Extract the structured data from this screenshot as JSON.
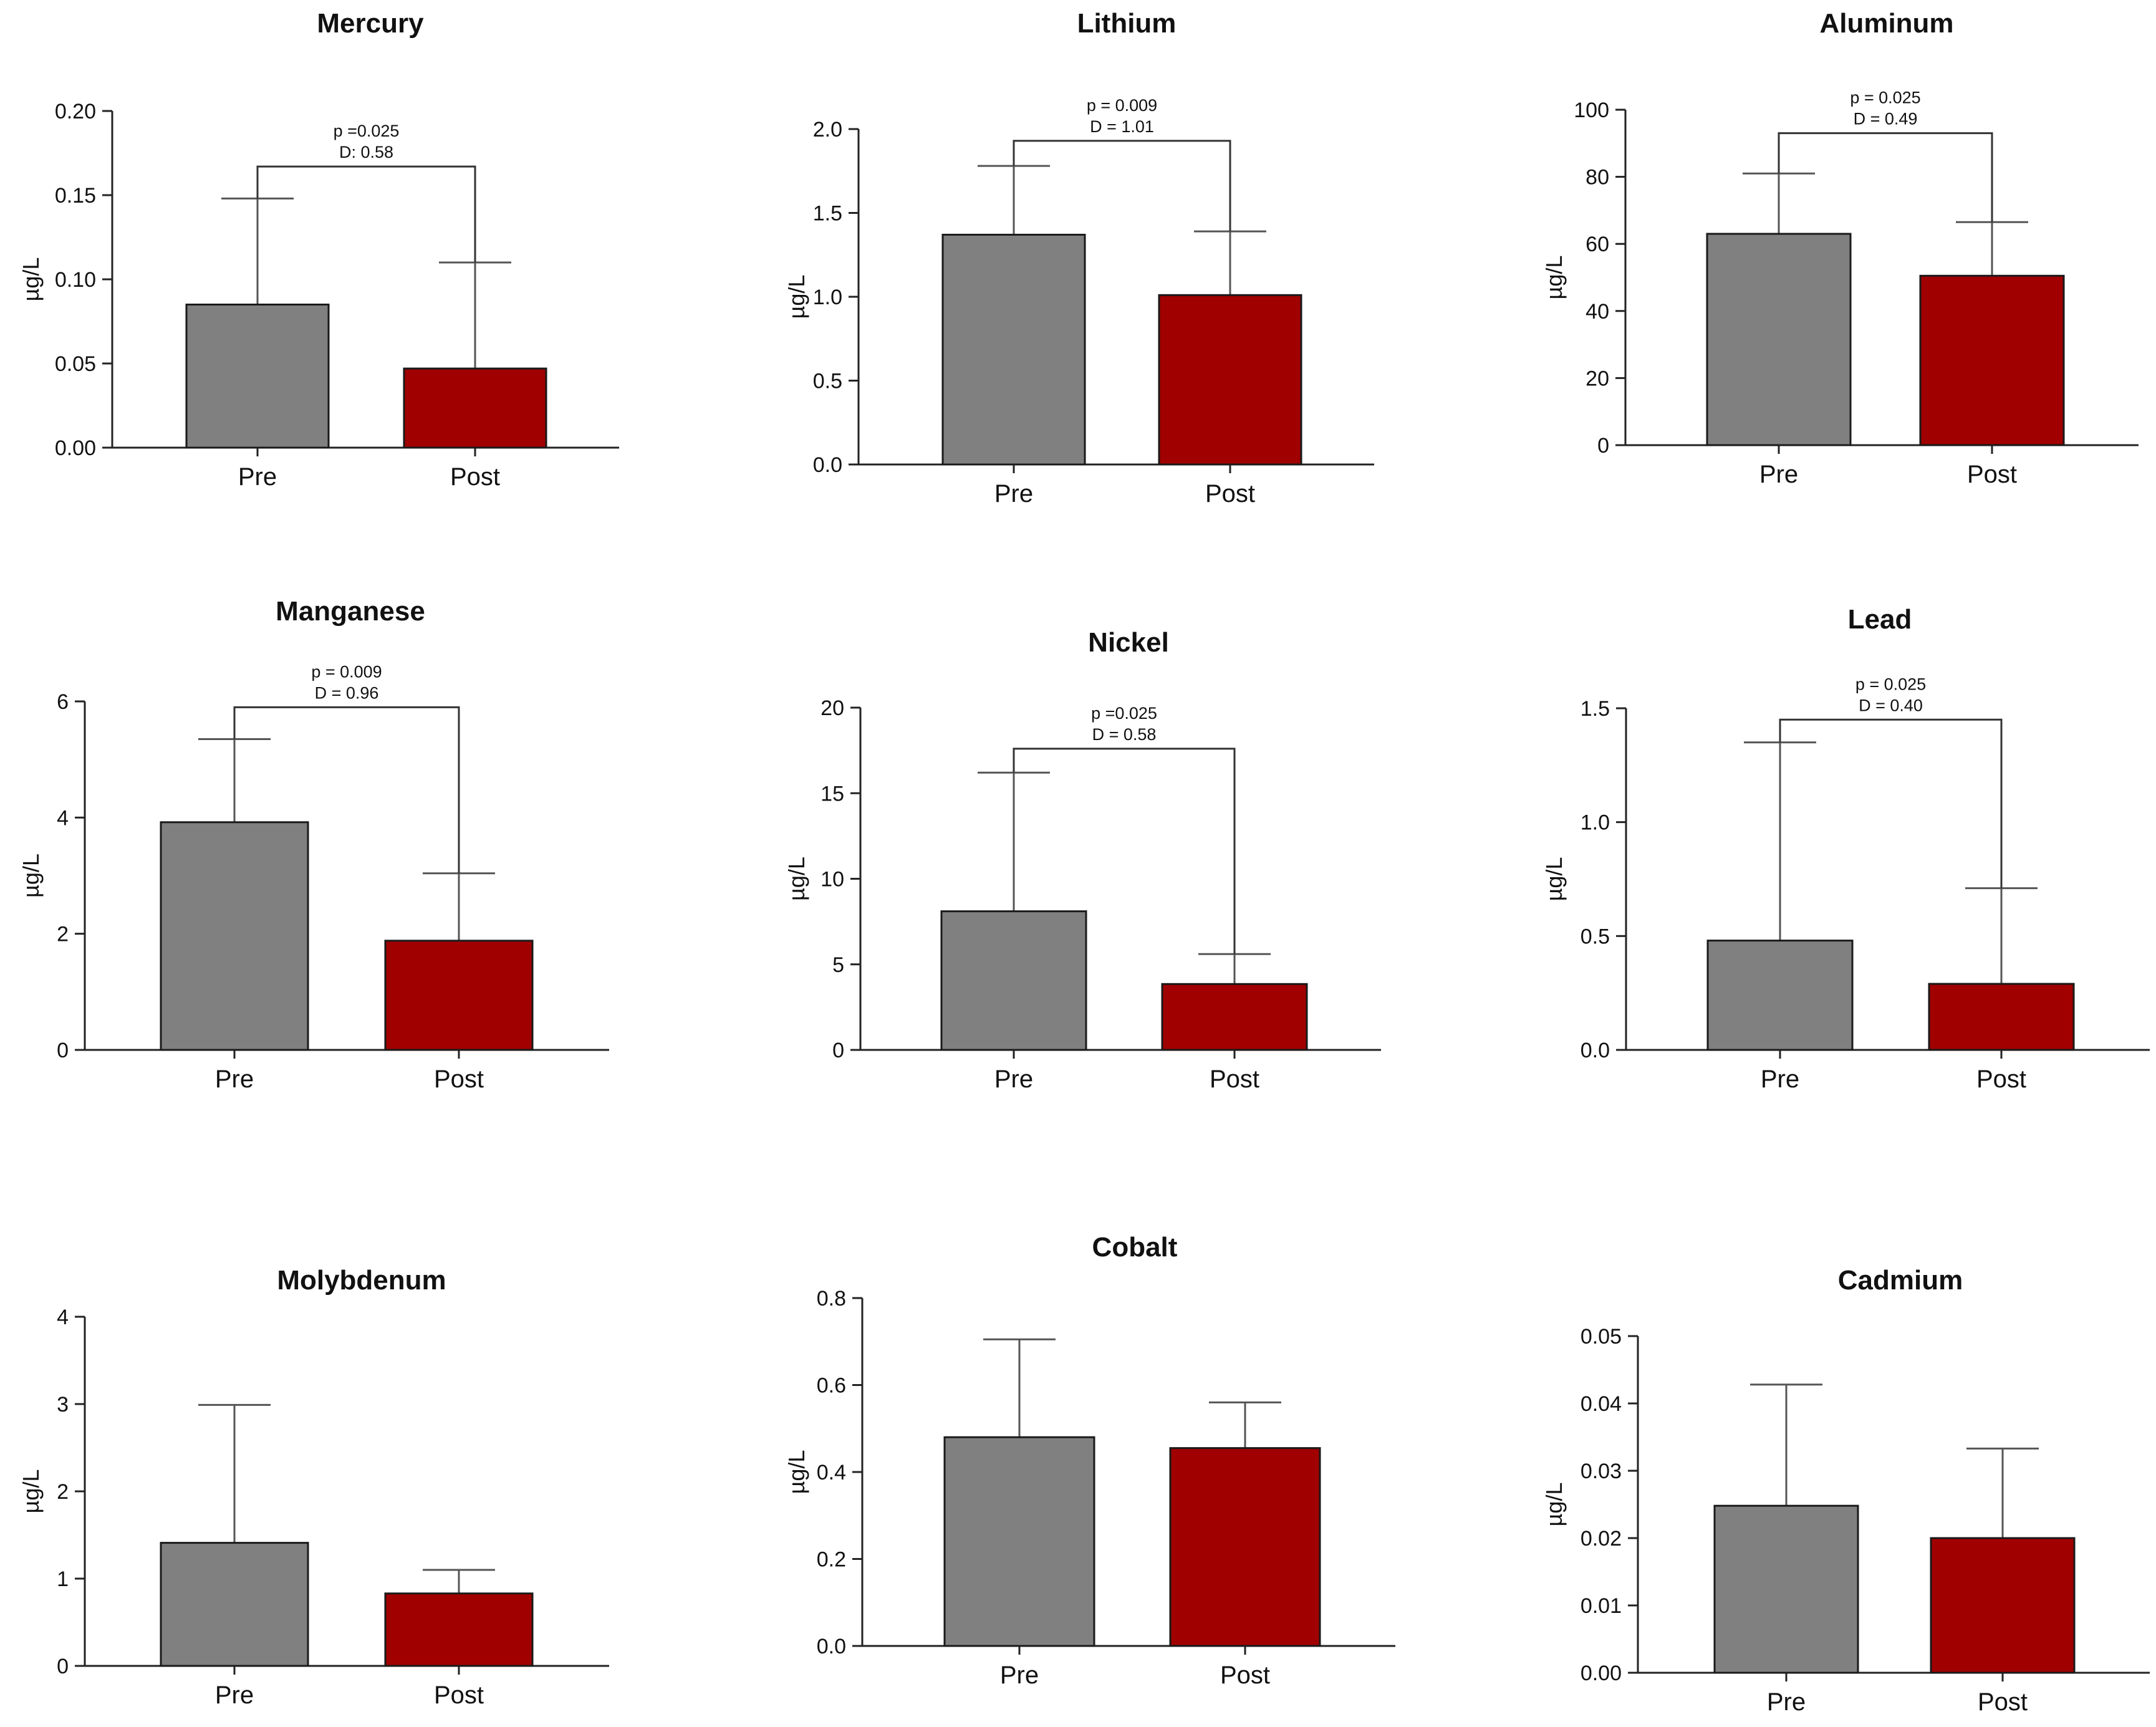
{
  "colors": {
    "pre": "#808080",
    "post": "#a00000",
    "axis": "#222222",
    "error": "#555555"
  },
  "chart_data": [
    {
      "type": "bar",
      "title": "Mercury",
      "ylabel": "µg/L",
      "categories": [
        "Pre",
        "Post"
      ],
      "values": [
        0.085,
        0.047
      ],
      "errors": [
        0.063,
        0.063
      ],
      "ylim": [
        0,
        0.2
      ],
      "yticks": [
        "0.00",
        "0.05",
        "0.10",
        "0.15",
        "0.20"
      ],
      "ytick_values": [
        0,
        0.05,
        0.1,
        0.15,
        0.2
      ],
      "annotation": {
        "line1": "p =0.025",
        "line2": "D: 0.58",
        "bracket_y": 0.167
      }
    },
    {
      "type": "bar",
      "title": "Lithium",
      "ylabel": "µg/L",
      "categories": [
        "Pre",
        "Post"
      ],
      "values": [
        1.37,
        1.01
      ],
      "errors": [
        0.41,
        0.38
      ],
      "ylim": [
        0,
        2
      ],
      "yticks": [
        "0.0",
        "0.5",
        "1.0",
        "1.5",
        "2.0"
      ],
      "ytick_values": [
        0,
        0.5,
        1,
        1.5,
        2
      ],
      "annotation": {
        "line1": "p = 0.009",
        "line2": "D = 1.01",
        "bracket_y": 1.93
      }
    },
    {
      "type": "bar",
      "title": "Aluminum",
      "ylabel": "µg/L",
      "categories": [
        "Pre",
        "Post"
      ],
      "values": [
        63,
        50.5
      ],
      "errors": [
        18,
        16
      ],
      "ylim": [
        0,
        100
      ],
      "yticks": [
        "0",
        "20",
        "40",
        "60",
        "80",
        "100"
      ],
      "ytick_values": [
        0,
        20,
        40,
        60,
        80,
        100
      ],
      "annotation": {
        "line1": "p = 0.025",
        "line2": "D = 0.49",
        "bracket_y": 93
      }
    },
    {
      "type": "bar",
      "title": "Manganese",
      "ylabel": "µg/L",
      "categories": [
        "Pre",
        "Post"
      ],
      "values": [
        3.92,
        1.88
      ],
      "errors": [
        1.43,
        1.16
      ],
      "ylim": [
        0,
        6
      ],
      "yticks": [
        "0",
        "2",
        "4",
        "6"
      ],
      "ytick_values": [
        0,
        2,
        4,
        6
      ],
      "annotation": {
        "line1": "p = 0.009",
        "line2": "D = 0.96",
        "bracket_y": 5.9
      }
    },
    {
      "type": "bar",
      "title": "Nickel",
      "ylabel": "µg/L",
      "categories": [
        "Pre",
        "Post"
      ],
      "values": [
        8.1,
        3.85
      ],
      "errors": [
        8.1,
        1.75
      ],
      "ylim": [
        0,
        20
      ],
      "yticks": [
        "0",
        "5",
        "10",
        "15",
        "20"
      ],
      "ytick_values": [
        0,
        5,
        10,
        15,
        20
      ],
      "annotation": {
        "line1": "p =0.025",
        "line2": "D = 0.58",
        "bracket_y": 17.6
      }
    },
    {
      "type": "bar",
      "title": "Lead",
      "ylabel": "µg/L",
      "categories": [
        "Pre",
        "Post"
      ],
      "values": [
        0.48,
        0.29
      ],
      "errors": [
        0.87,
        0.42
      ],
      "ylim": [
        0,
        1.5
      ],
      "yticks": [
        "0.0",
        "0.5",
        "1.0",
        "1.5"
      ],
      "ytick_values": [
        0,
        0.5,
        1,
        1.5
      ],
      "annotation": {
        "line1": "p = 0.025",
        "line2": "D = 0.40",
        "bracket_y": 1.45
      }
    },
    {
      "type": "bar",
      "title": "Molybdenum",
      "ylabel": "µg/L",
      "categories": [
        "Pre",
        "Post"
      ],
      "values": [
        1.41,
        0.83
      ],
      "errors": [
        1.58,
        0.27
      ],
      "ylim": [
        0,
        4
      ],
      "yticks": [
        "0",
        "1",
        "2",
        "3",
        "4"
      ],
      "ytick_values": [
        0,
        1,
        2,
        3,
        4
      ]
    },
    {
      "type": "bar",
      "title": "Cobalt",
      "ylabel": "µg/L",
      "categories": [
        "Pre",
        "Post"
      ],
      "values": [
        0.48,
        0.455
      ],
      "errors": [
        0.225,
        0.105
      ],
      "ylim": [
        0,
        0.8
      ],
      "yticks": [
        "0.0",
        "0.2",
        "0.4",
        "0.6",
        "0.8"
      ],
      "ytick_values": [
        0,
        0.2,
        0.4,
        0.6,
        0.8
      ]
    },
    {
      "type": "bar",
      "title": "Cadmium",
      "ylabel": "µg/L",
      "categories": [
        "Pre",
        "Post"
      ],
      "values": [
        0.0248,
        0.02
      ],
      "errors": [
        0.018,
        0.0133
      ],
      "ylim": [
        0,
        0.05
      ],
      "yticks": [
        "0.00",
        "0.01",
        "0.02",
        "0.03",
        "0.04",
        "0.05"
      ],
      "ytick_values": [
        0,
        0.01,
        0.02,
        0.03,
        0.04,
        0.05
      ]
    }
  ]
}
